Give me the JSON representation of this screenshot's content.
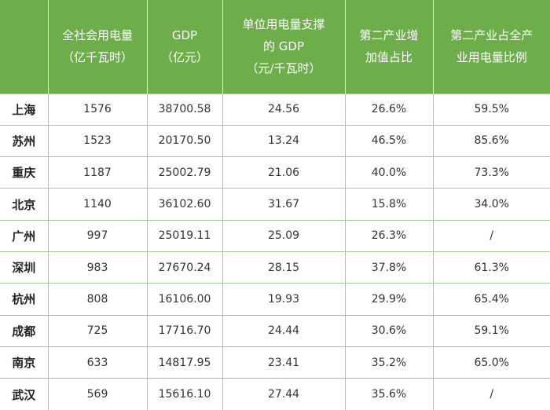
{
  "header": {
    "col0": [],
    "col1": [
      "全社会用电量",
      "（亿千瓦时）"
    ],
    "col2": [
      "GDP",
      "（亿元）"
    ],
    "col3": [
      "单位用电量支撑",
      "的 GDP",
      "（元/千瓦时）"
    ],
    "col4": [
      "第二产业增",
      "加值占比"
    ],
    "col5": [
      "第二产业占全产",
      "业用电量比例"
    ]
  },
  "rows": [
    [
      "上海",
      "1576",
      "38700.58",
      "24.56",
      "26.6%",
      "59.5%"
    ],
    [
      "苏州",
      "1523",
      "20170.50",
      "13.24",
      "46.5%",
      "85.6%"
    ],
    [
      "重庆",
      "1187",
      "25002.79",
      "21.06",
      "40.0%",
      "73.3%"
    ],
    [
      "北京",
      "1140",
      "36102.60",
      "31.67",
      "15.8%",
      "34.0%"
    ],
    [
      "广州",
      "997",
      "25019.11",
      "25.09",
      "26.3%",
      "/"
    ],
    [
      "深圳",
      "983",
      "27670.24",
      "28.15",
      "37.8%",
      "61.3%"
    ],
    [
      "杭州",
      "808",
      "16106.00",
      "19.93",
      "29.9%",
      "65.4%"
    ],
    [
      "成都",
      "725",
      "17716.70",
      "24.44",
      "30.6%",
      "59.1%"
    ],
    [
      "南京",
      "633",
      "14817.95",
      "23.41",
      "35.2%",
      "65.0%"
    ],
    [
      "武汉",
      "569",
      "15616.10",
      "27.44",
      "35.6%",
      "/"
    ]
  ]
}
